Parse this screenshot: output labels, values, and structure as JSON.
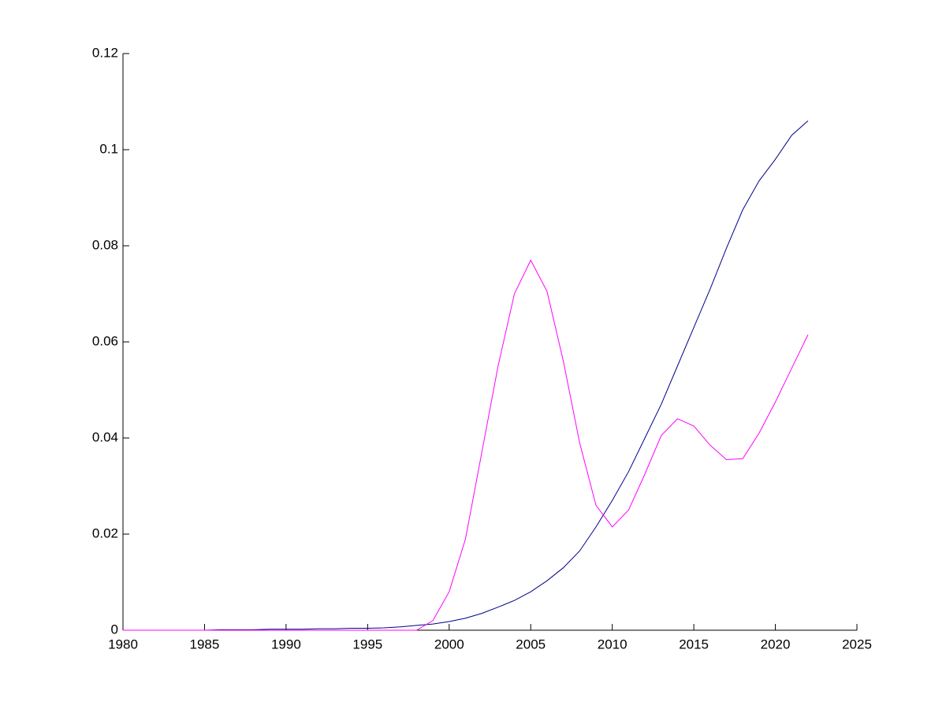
{
  "chart_data": {
    "type": "line",
    "x": [
      1980,
      1981,
      1982,
      1983,
      1984,
      1985,
      1986,
      1987,
      1988,
      1989,
      1990,
      1991,
      1992,
      1993,
      1994,
      1995,
      1996,
      1997,
      1998,
      1999,
      2000,
      2001,
      2002,
      2003,
      2004,
      2005,
      2006,
      2007,
      2008,
      2009,
      2010,
      2011,
      2012,
      2013,
      2014,
      2015,
      2016,
      2017,
      2018,
      2019,
      2020,
      2021,
      2022
    ],
    "series": [
      {
        "color": "#00008b",
        "values": [
          0,
          0,
          0,
          0,
          0,
          0,
          0.0001,
          0.0001,
          0.0001,
          0.0002,
          0.0002,
          0.0002,
          0.0003,
          0.0003,
          0.0004,
          0.0004,
          0.0005,
          0.0007,
          0.001,
          0.0013,
          0.0018,
          0.0025,
          0.0035,
          0.0048,
          0.0062,
          0.008,
          0.0103,
          0.013,
          0.0165,
          0.0215,
          0.027,
          0.033,
          0.04,
          0.047,
          0.055,
          0.063,
          0.071,
          0.0795,
          0.0875,
          0.0935,
          0.098,
          0.103,
          0.106
        ]
      },
      {
        "color": "#ff00ff",
        "values": [
          0,
          0,
          0,
          0,
          0,
          0,
          0,
          0,
          0,
          0,
          0,
          0,
          0,
          0,
          0,
          0,
          0,
          0,
          0,
          0.002,
          0.008,
          0.019,
          0.037,
          0.055,
          0.07,
          0.077,
          0.0705,
          0.056,
          0.039,
          0.026,
          0.0215,
          0.025,
          0.0325,
          0.0405,
          0.044,
          0.0425,
          0.0385,
          0.0355,
          0.0357,
          0.041,
          0.0475,
          0.0545,
          0.0615
        ]
      }
    ],
    "xlim": [
      1980,
      2025
    ],
    "xticks": [
      1980,
      1985,
      1990,
      1995,
      2000,
      2005,
      2010,
      2015,
      2020,
      2025
    ],
    "ylim": [
      0,
      0.12
    ],
    "yticks": [
      0,
      0.02,
      0.04,
      0.06,
      0.08,
      0.1,
      0.12
    ]
  }
}
